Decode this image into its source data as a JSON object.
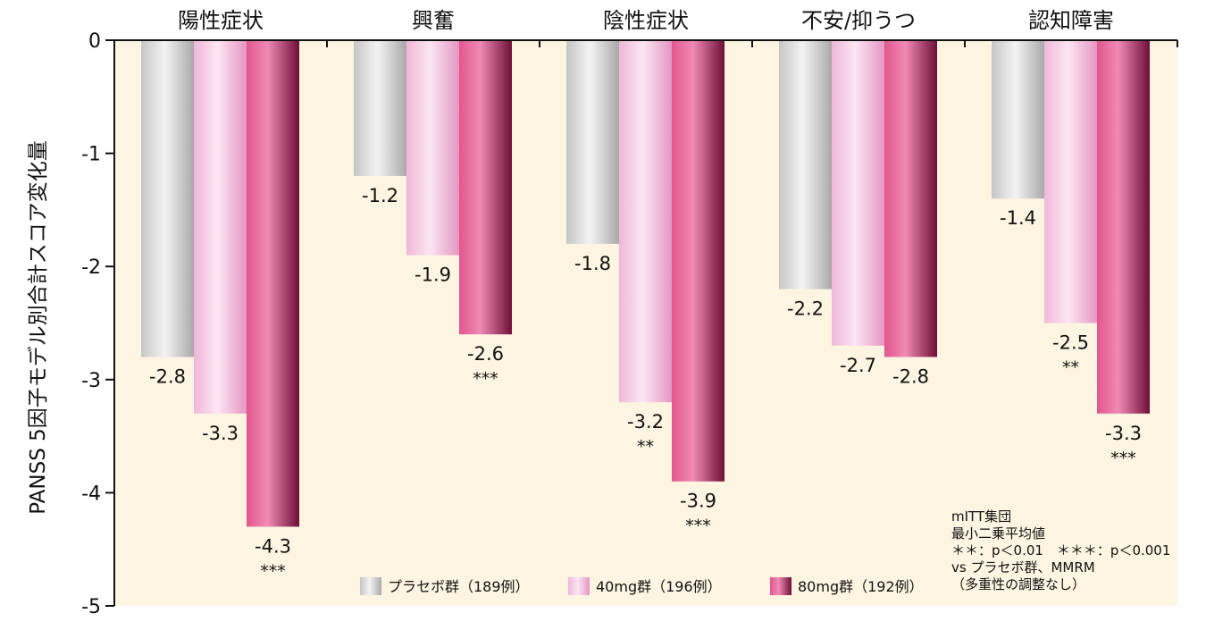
{
  "chart_data": {
    "type": "bar",
    "ylabel": "PANSS 5因子モデル別合計スコア変化量",
    "ylim": [
      -5,
      0
    ],
    "yticks": [
      "0",
      "-1",
      "-2",
      "-3",
      "-4",
      "-5"
    ],
    "categories": [
      "陽性症状",
      "興奮",
      "陰性症状",
      "不安/抑うつ",
      "認知障害"
    ],
    "series": [
      {
        "name": "プラセボ群（189例）",
        "values": [
          -2.8,
          -1.2,
          -1.8,
          -2.2,
          -1.4
        ],
        "labels": [
          "-2.8",
          "-1.2",
          "-1.8",
          "-2.2",
          "-1.4"
        ],
        "sig": [
          "",
          "",
          "",
          "",
          ""
        ]
      },
      {
        "name": "40mg群（196例）",
        "values": [
          -3.3,
          -1.9,
          -3.2,
          -2.7,
          -2.5
        ],
        "labels": [
          "-3.3",
          "-1.9",
          "-3.2",
          "-2.7",
          "-2.5"
        ],
        "sig": [
          "",
          "",
          "**",
          "",
          "**"
        ]
      },
      {
        "name": "80mg群（192例）",
        "values": [
          -4.3,
          -2.6,
          -3.9,
          -2.8,
          -3.3
        ],
        "labels": [
          "-4.3",
          "-2.6",
          "-3.9",
          "-2.8",
          "-3.3"
        ],
        "sig": [
          "***",
          "***",
          "***",
          "",
          "***"
        ]
      }
    ],
    "legend_position": "bottom",
    "notes": [
      "mITT集団",
      "最小二乗平均値",
      "＊＊：p＜0.01　＊＊＊：p＜0.001",
      "vs プラセボ群、MMRM",
      "（多重性の調整なし）"
    ],
    "colors": {
      "background": "#fdf5e2",
      "placebo": [
        "#c6c6c6",
        "#f3f3f3",
        "#a9a9a9"
      ],
      "mg40": [
        "#f0b7d8",
        "#fbe6f3",
        "#e596c3"
      ],
      "mg80": [
        "#e2568e",
        "#f08ab5",
        "#6e0e36"
      ]
    }
  }
}
